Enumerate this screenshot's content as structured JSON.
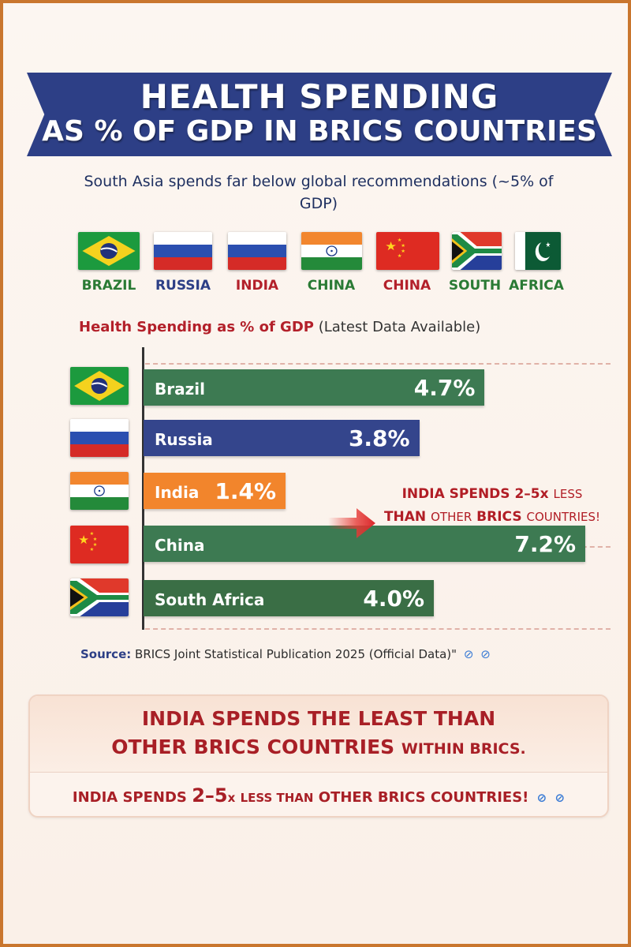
{
  "header": {
    "title_line1": "HEALTH SPENDING",
    "title_line2": "AS % OF GDP IN BRICS COUNTRIES"
  },
  "subtitle": "South Asia spends far below global recommendations (~5% of GDP)",
  "flag_row": [
    {
      "label": "BRAZIL",
      "flag": "brazil-flag-icon",
      "color": "#2a7a34"
    },
    {
      "label": "RUSSIA",
      "flag": "russia-flag-icon",
      "color": "#2d3f86"
    },
    {
      "label": "INDIA",
      "flag": "russia-flag-icon",
      "color": "#b3202a"
    },
    {
      "label": "CHINA",
      "flag": "india-flag-icon",
      "color": "#2a7a34"
    },
    {
      "label": "CHINA",
      "flag": "china-flag-icon",
      "color": "#b3202a"
    },
    {
      "label": "SOUTH",
      "flag": "south-africa-flag-icon",
      "color": "#2a7a34"
    },
    {
      "label": "AFRICA",
      "flag": "pakistan-flag-icon",
      "color": "#2a7a34"
    }
  ],
  "chart_data": {
    "type": "bar",
    "orientation": "horizontal",
    "title": "Health Spending as % of GDP",
    "title_note": "(Latest Data Available)",
    "categories": [
      "Brazil",
      "Russia",
      "India",
      "China",
      "South Africa"
    ],
    "values": [
      4.7,
      3.8,
      1.4,
      7.2,
      4.0
    ],
    "value_labels": [
      "4.7%",
      "3.8%",
      "1.4%",
      "7.2%",
      "4.0%"
    ],
    "bar_colors": [
      "#3d7a52",
      "#34458c",
      "#f2852c",
      "#3d7a52",
      "#3a6e45"
    ],
    "flags": [
      "brazil-flag-icon",
      "russia-flag-icon",
      "india-flag-icon",
      "china-flag-icon",
      "south-africa-flag-icon"
    ],
    "xlim": [
      0,
      8
    ],
    "grid": false
  },
  "callout": {
    "line1_bold": "INDIA SPENDS 2–5x",
    "line1_small": "LESS",
    "line2_bold": "THAN",
    "line2_mid": "OTHER",
    "line2_bold2": "BRICS",
    "line2_small": "COUNTRIES!"
  },
  "source": {
    "label": "Source:",
    "text": "BRICS Joint Statistical Publication 2025 (Official Data)\""
  },
  "conclusion": {
    "line1": "INDIA SPENDS THE LEAST THAN",
    "line2_bold": "OTHER BRICS COUNTRIES",
    "line2_small": "WITHIN BRICS.",
    "line3_a": "INDIA SPENDS",
    "line3_b": "2–5",
    "line3_c": "x",
    "line3_d": "LESS THAN",
    "line3_e": "OTHER BRICS COUNTRIES!"
  },
  "colors": {
    "banner": "#2d3f86",
    "accent_red": "#b3202a",
    "green": "#2a7a34",
    "frame": "#c9762e"
  }
}
